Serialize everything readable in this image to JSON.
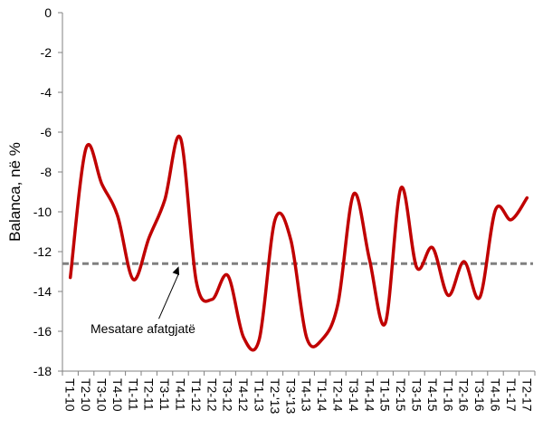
{
  "chart_data": {
    "type": "line",
    "ylabel": "Balanca, në %",
    "ylim": [
      -18,
      0
    ],
    "yticks": [
      0,
      -2,
      -4,
      -6,
      -8,
      -10,
      -12,
      -14,
      -16,
      -18
    ],
    "categories": [
      "T1-10",
      "T2-10",
      "T3-10",
      "T4-10",
      "T1-11",
      "T2-11",
      "T3-11",
      "T4-11",
      "T1-12",
      "T2-12",
      "T3-12",
      "T4-12",
      "T1-13",
      "T2-'13",
      "T3-'13",
      "T4-13",
      "T1-14",
      "T2-14",
      "T3-14",
      "T4-14",
      "T1-15",
      "T2-15",
      "T3-15",
      "T4-15",
      "T1-16",
      "T2-16",
      "T3-16",
      "T4-16",
      "T1-17",
      "T2-17"
    ],
    "series": [
      {
        "color": "#c00000",
        "values": [
          -13.3,
          -6.8,
          -8.6,
          -10.2,
          -13.4,
          -11.3,
          -9.4,
          -6.3,
          -13.5,
          -14.4,
          -13.2,
          -16.3,
          -16.4,
          -10.4,
          -11.4,
          -16.3,
          -16.4,
          -14.6,
          -9.1,
          -12.4,
          -15.6,
          -8.8,
          -12.8,
          -11.8,
          -14.2,
          -12.5,
          -14.3,
          -9.9,
          -10.4,
          -9.3
        ]
      },
      {
        "name": "Mesatare afatgjatë",
        "color": "#808080",
        "dashed": true,
        "values": [
          -12.6,
          -12.6,
          -12.6,
          -12.6,
          -12.6,
          -12.6,
          -12.6,
          -12.6,
          -12.6,
          -12.6,
          -12.6,
          -12.6,
          -12.6,
          -12.6,
          -12.6,
          -12.6,
          -12.6,
          -12.6,
          -12.6,
          -12.6,
          -12.6,
          -12.6,
          -12.6,
          -12.6,
          -12.6,
          -12.6,
          -12.6,
          -12.6,
          -12.6,
          -12.6
        ]
      }
    ],
    "annotation": {
      "text": "Mesatare afatgjatë",
      "points_to_category": "T4-11",
      "points_to_value": -12.6
    },
    "grid": false,
    "legend": "none"
  }
}
